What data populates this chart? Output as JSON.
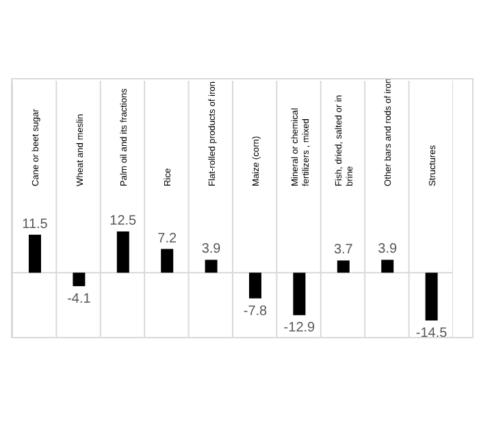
{
  "chart_data": {
    "type": "bar",
    "categories": [
      "Cane or beet sugar",
      "Wheat and meslin",
      "Palm oil and its fractions",
      "Rice",
      "Flat-rolled products of iron",
      "Maize (corn)",
      "Mineral or chemical fertilizers , mixed",
      "Fish, dried, salted or in brine",
      "Other bars and rods of iron",
      "Structures"
    ],
    "values": [
      11.5,
      -4.1,
      12.5,
      7.2,
      3.9,
      -7.8,
      -12.9,
      3.7,
      3.9,
      -14.5
    ],
    "color": "#000000",
    "data_labels": true,
    "grid": "x"
  }
}
